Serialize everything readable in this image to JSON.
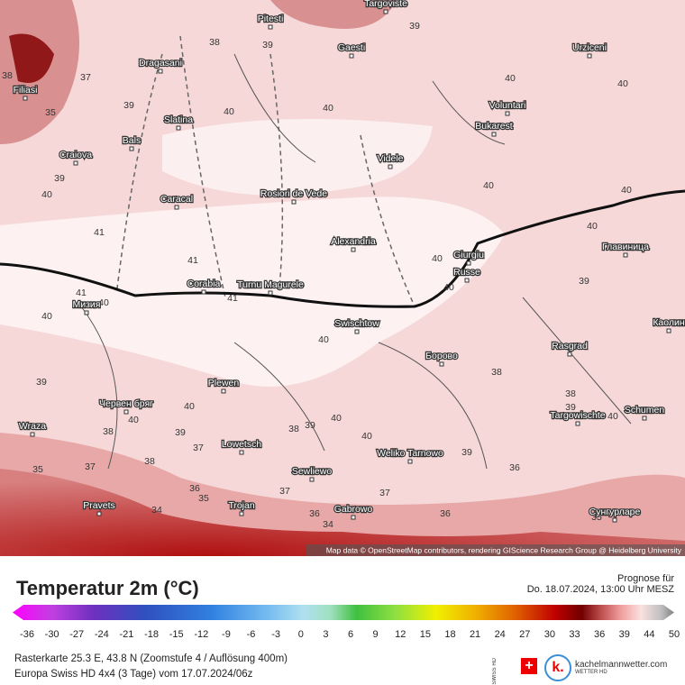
{
  "map": {
    "cities": [
      "Pitesti",
      "Targoviste",
      "Gaesti",
      "Urziceni",
      "Dragasani",
      "Filiasi",
      "Slatina",
      "Bals",
      "Craiova",
      "Voluntari",
      "Bukarest",
      "Videle",
      "Rosiori de Vede",
      "Caracal",
      "Alexandria",
      "Giurgiu",
      "Russe",
      "Главиница",
      "Corabia",
      "Turnu Magurele",
      "Мизия",
      "Swischtow",
      "Каолин",
      "Rasgrad",
      "Борово",
      "Plewen",
      "Червен бряг",
      "Targowischte",
      "Schumen",
      "Wraza",
      "Lowetsch",
      "Weliko Tarnowo",
      "Sewliewo",
      "Pravets",
      "Trojan",
      "Gabrowo",
      "Сунгурларе"
    ],
    "isotherm_labels": [
      38,
      39,
      39,
      38,
      37,
      35,
      39,
      40,
      40,
      40,
      40,
      39,
      40,
      41,
      41,
      40,
      40,
      40,
      40,
      40,
      41,
      40,
      40,
      41,
      40,
      39,
      39,
      40,
      40,
      39,
      38,
      38,
      38,
      39,
      40,
      38,
      39,
      40,
      40,
      39,
      37,
      38,
      37,
      35,
      36,
      36,
      35,
      37,
      37,
      36,
      34,
      36,
      35,
      34
    ],
    "attribution": "Map data © OpenStreetMap contributors, rendering GIScience Research Group @ Heidelberg University"
  },
  "legend": {
    "title": "Temperatur 2m (°C)",
    "ticks": [
      -36,
      -30,
      -27,
      -24,
      -21,
      -18,
      -15,
      -12,
      -9,
      -6,
      -3,
      0,
      3,
      6,
      9,
      12,
      15,
      18,
      21,
      24,
      27,
      30,
      33,
      36,
      39,
      44,
      50
    ]
  },
  "forecast": {
    "label": "Prognose für",
    "time": "Do. 18.07.2024, 13:00 Uhr MESZ"
  },
  "footer": {
    "line1": "Rasterkarte 25.3 E, 43.8 N (Zoomstufe 4 / Auflösung 400m)",
    "line2": "Europa Swiss HD 4x4 (3 Tage) vom  17.07.2024/06z",
    "swiss": "SWISS HD",
    "site": "kachelmannwetter.com",
    "site_sub": "WETTER HD"
  }
}
